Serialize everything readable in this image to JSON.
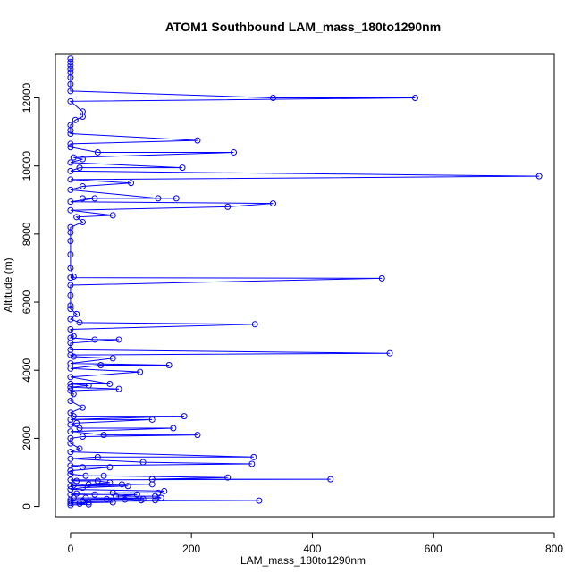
{
  "chart_data": {
    "type": "line",
    "title": "ATOM1 Southbound LAM_mass_180to1290nm",
    "xlabel": "LAM_mass_180to1290nm",
    "ylabel": "Altitude (m)",
    "xlim": [
      -25,
      800
    ],
    "ylim": [
      -300,
      13300
    ],
    "x_ticks": [
      0,
      200,
      400,
      600,
      800
    ],
    "y_ticks": [
      0,
      2000,
      4000,
      6000,
      8000,
      10000,
      12000
    ],
    "grid": false,
    "legend": "none",
    "colors": {
      "series": "#0000ff",
      "axis": "#000000"
    },
    "series": [
      {
        "marker": "open-circle",
        "points": [
          [
            0,
            13150
          ],
          [
            0,
            13050
          ],
          [
            0,
            12950
          ],
          [
            0,
            12850
          ],
          [
            0,
            12750
          ],
          [
            0,
            12600
          ],
          [
            0,
            12400
          ],
          [
            0,
            12200
          ],
          [
            335,
            12000
          ],
          [
            570,
            12000
          ],
          [
            0,
            11900
          ],
          [
            20,
            11600
          ],
          [
            20,
            11450
          ],
          [
            8,
            11350
          ],
          [
            0,
            11200
          ],
          [
            0,
            11050
          ],
          [
            0,
            10950
          ],
          [
            210,
            10750
          ],
          [
            0,
            10650
          ],
          [
            0,
            10550
          ],
          [
            45,
            10400
          ],
          [
            270,
            10400
          ],
          [
            5,
            10250
          ],
          [
            20,
            10200
          ],
          [
            0,
            10100
          ],
          [
            185,
            9950
          ],
          [
            15,
            9950
          ],
          [
            0,
            9850
          ],
          [
            775,
            9700
          ],
          [
            0,
            9600
          ],
          [
            100,
            9500
          ],
          [
            20,
            9400
          ],
          [
            0,
            9300
          ],
          [
            145,
            9050
          ],
          [
            175,
            9050
          ],
          [
            20,
            9050
          ],
          [
            40,
            9050
          ],
          [
            0,
            8950
          ],
          [
            335,
            8900
          ],
          [
            260,
            8800
          ],
          [
            0,
            8700
          ],
          [
            70,
            8550
          ],
          [
            10,
            8500
          ],
          [
            20,
            8350
          ],
          [
            0,
            8200
          ],
          [
            0,
            8050
          ],
          [
            0,
            7800
          ],
          [
            0,
            7400
          ],
          [
            0,
            7000
          ],
          [
            5,
            6750
          ],
          [
            0,
            6720
          ],
          [
            515,
            6700
          ],
          [
            0,
            6500
          ],
          [
            0,
            6200
          ],
          [
            0,
            5900
          ],
          [
            0,
            5800
          ],
          [
            10,
            5650
          ],
          [
            0,
            5500
          ],
          [
            15,
            5400
          ],
          [
            305,
            5350
          ],
          [
            0,
            5200
          ],
          [
            5,
            5000
          ],
          [
            0,
            4950
          ],
          [
            40,
            4900
          ],
          [
            80,
            4900
          ],
          [
            0,
            4800
          ],
          [
            0,
            4600
          ],
          [
            528,
            4500
          ],
          [
            0,
            4450
          ],
          [
            5,
            4400
          ],
          [
            70,
            4350
          ],
          [
            0,
            4200
          ],
          [
            163,
            4150
          ],
          [
            50,
            4150
          ],
          [
            0,
            4050
          ],
          [
            115,
            3950
          ],
          [
            0,
            3800
          ],
          [
            65,
            3600
          ],
          [
            0,
            3600
          ],
          [
            30,
            3550
          ],
          [
            0,
            3500
          ],
          [
            80,
            3450
          ],
          [
            0,
            3400
          ],
          [
            5,
            3300
          ],
          [
            0,
            3100
          ],
          [
            20,
            2900
          ],
          [
            0,
            2750
          ],
          [
            5,
            2650
          ],
          [
            188,
            2650
          ],
          [
            0,
            2550
          ],
          [
            135,
            2550
          ],
          [
            10,
            2450
          ],
          [
            0,
            2400
          ],
          [
            15,
            2300
          ],
          [
            170,
            2300
          ],
          [
            0,
            2200
          ],
          [
            55,
            2100
          ],
          [
            210,
            2100
          ],
          [
            20,
            2050
          ],
          [
            0,
            2000
          ],
          [
            0,
            1850
          ],
          [
            15,
            1700
          ],
          [
            0,
            1600
          ],
          [
            303,
            1450
          ],
          [
            45,
            1450
          ],
          [
            0,
            1400
          ],
          [
            120,
            1300
          ],
          [
            300,
            1250
          ],
          [
            0,
            1200
          ],
          [
            20,
            1150
          ],
          [
            65,
            1150
          ],
          [
            0,
            1050
          ],
          [
            0,
            950
          ],
          [
            25,
            900
          ],
          [
            55,
            900
          ],
          [
            260,
            850
          ],
          [
            135,
            800
          ],
          [
            430,
            800
          ],
          [
            0,
            780
          ],
          [
            10,
            750
          ],
          [
            45,
            750
          ],
          [
            65,
            700
          ],
          [
            30,
            650
          ],
          [
            85,
            650
          ],
          [
            135,
            650
          ],
          [
            5,
            620
          ],
          [
            0,
            600
          ],
          [
            95,
            600
          ],
          [
            20,
            550
          ],
          [
            0,
            500
          ],
          [
            155,
            450
          ],
          [
            145,
            400
          ],
          [
            70,
            400
          ],
          [
            10,
            380
          ],
          [
            0,
            350
          ],
          [
            40,
            350
          ],
          [
            110,
            350
          ],
          [
            75,
            300
          ],
          [
            140,
            300
          ],
          [
            150,
            250
          ],
          [
            5,
            250
          ],
          [
            25,
            250
          ],
          [
            120,
            220
          ],
          [
            60,
            220
          ],
          [
            0,
            200
          ],
          [
            90,
            200
          ],
          [
            117,
            180
          ],
          [
            140,
            180
          ],
          [
            312,
            170
          ],
          [
            0,
            150
          ],
          [
            20,
            150
          ],
          [
            30,
            120
          ],
          [
            70,
            120
          ],
          [
            0,
            100
          ],
          [
            15,
            80
          ],
          [
            30,
            60
          ],
          [
            0,
            40
          ]
        ]
      }
    ]
  }
}
